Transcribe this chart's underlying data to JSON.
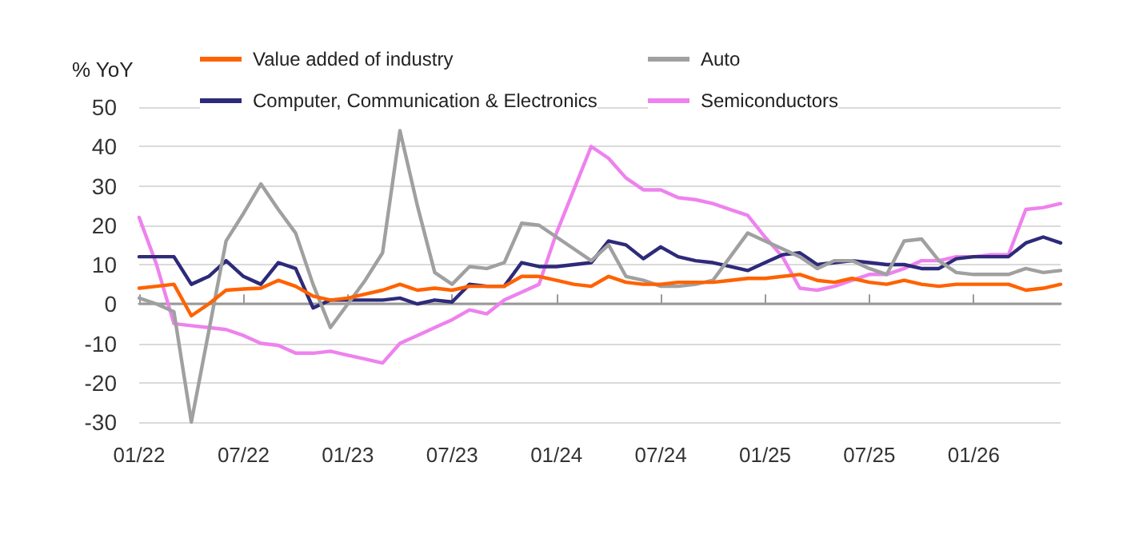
{
  "chart_data": {
    "type": "line",
    "ylabel": "% YoY",
    "legend": "top",
    "grid": "y",
    "marker": "none",
    "line_style": "solid",
    "categories": [
      "01/22",
      null,
      null,
      null,
      null,
      null,
      "07/22",
      null,
      null,
      null,
      null,
      null,
      "01/23",
      null,
      null,
      null,
      null,
      null,
      "07/23",
      null,
      null,
      null,
      null,
      null,
      "01/24",
      null,
      null,
      null,
      null,
      null,
      "07/24",
      null,
      null,
      null,
      null,
      null,
      "01/25",
      null,
      null,
      null,
      null,
      null,
      "07/25",
      null,
      null,
      null,
      null,
      null,
      "01/26",
      null,
      null,
      null,
      null,
      null
    ],
    "ylim": [
      -30,
      50
    ],
    "yticks": [
      -30,
      -20,
      -10,
      0,
      10,
      20,
      30,
      40,
      50
    ],
    "series": [
      {
        "name": "Value added of industry",
        "color": "#ff6200",
        "values": [
          4,
          4.5,
          5,
          -3,
          0,
          3.5,
          3.8,
          4,
          6,
          4.5,
          2,
          1,
          1.5,
          2.5,
          3.5,
          5,
          3.5,
          4,
          3.5,
          4.5,
          4.5,
          4.5,
          7,
          7,
          6,
          5,
          4.5,
          7,
          5.5,
          5,
          5,
          5.5,
          5.5,
          5.5,
          6,
          6.5,
          6.5,
          7,
          7.5,
          6,
          5.5,
          6.5,
          5.5,
          5,
          6,
          5,
          4.5,
          5,
          5,
          5,
          5,
          3.5,
          4,
          5
        ]
      },
      {
        "name": "Auto",
        "color": "#a0a0a0",
        "values": [
          1.5,
          0,
          -2,
          -30,
          -7,
          16,
          23,
          30.5,
          24,
          18,
          5,
          -6,
          0,
          6,
          13,
          44,
          25,
          8,
          5,
          9.5,
          9,
          10.5,
          20.5,
          20,
          17,
          14,
          11,
          15,
          7,
          6,
          4.5,
          4.5,
          5,
          6,
          12,
          18,
          16,
          14,
          12,
          9,
          11,
          11,
          9,
          7.5,
          16,
          16.5,
          11,
          8,
          7.5,
          7.5,
          7.5,
          9,
          8,
          8.5
        ]
      },
      {
        "name": "Computer, Communication & Electronics",
        "color": "#2e2a7a",
        "values": [
          12,
          12,
          12,
          5,
          7,
          11,
          7,
          5,
          10.5,
          9,
          -1,
          1,
          1,
          1,
          1,
          1.5,
          0,
          1,
          0.5,
          5,
          4.5,
          4.5,
          10.5,
          9.5,
          9.5,
          10,
          10.5,
          16,
          15,
          11.5,
          14.5,
          12,
          11,
          10.5,
          9.5,
          8.5,
          10.5,
          12.5,
          13,
          10,
          10.5,
          11,
          10.5,
          10,
          10,
          9,
          9,
          11.5,
          12,
          12,
          12,
          15.5,
          17,
          15.5
        ]
      },
      {
        "name": "Semiconductors",
        "color": "#ee82ee",
        "values": [
          22,
          10,
          -5,
          -5.5,
          -6,
          -6.5,
          -8,
          -10,
          -10.5,
          -12.5,
          -12.5,
          -12,
          -13,
          -14,
          -15,
          -10,
          -8,
          -6,
          -4,
          -1.5,
          -2.5,
          1,
          3,
          5,
          18,
          29,
          40,
          37,
          32,
          29,
          29,
          27,
          26.5,
          25.5,
          24,
          22.5,
          17,
          12,
          4,
          3.5,
          4.5,
          6,
          7.5,
          7.5,
          9,
          11,
          11,
          12,
          12,
          12.5,
          12.5,
          24,
          24.5,
          25.5
        ]
      }
    ]
  }
}
